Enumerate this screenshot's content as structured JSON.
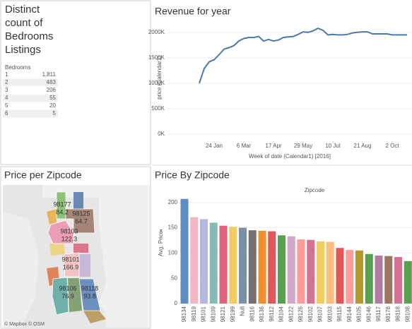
{
  "chart_data": [
    {
      "type": "table",
      "title": "Distinct count of Bedrooms Listings",
      "column": "Bedrooms",
      "categories": [
        "1",
        "2",
        "3",
        "4",
        "5",
        "6"
      ],
      "values": [
        1811,
        483,
        206,
        55,
        20,
        5
      ],
      "value_labels": [
        "1,811",
        "483",
        "206",
        "55",
        "20",
        "5"
      ],
      "stripe_color": "#f0f0f0"
    },
    {
      "type": "line",
      "title": "Revenue for year",
      "y_label": "price (Calendar1)",
      "x_label": "Week of date (Calendar1) [2016]",
      "color": "#4e79a7",
      "grid": true,
      "x": [
        "2016-01-03",
        "2016-01-10",
        "2016-01-17",
        "2016-01-24",
        "2016-01-31",
        "2016-02-07",
        "2016-02-14",
        "2016-02-21",
        "2016-02-28",
        "2016-03-06",
        "2016-03-13",
        "2016-03-20",
        "2016-03-27",
        "2016-04-03",
        "2016-04-10",
        "2016-04-17",
        "2016-04-24",
        "2016-05-01",
        "2016-05-08",
        "2016-05-15",
        "2016-05-22",
        "2016-05-29",
        "2016-06-05",
        "2016-06-12",
        "2016-06-19",
        "2016-06-26",
        "2016-07-03",
        "2016-07-10",
        "2016-07-17",
        "2016-07-24",
        "2016-07-31",
        "2016-08-07",
        "2016-08-14",
        "2016-08-21",
        "2016-08-28",
        "2016-09-04",
        "2016-09-11",
        "2016-09-18",
        "2016-09-25",
        "2016-10-02",
        "2016-10-09",
        "2016-10-16",
        "2016-10-23"
      ],
      "values": [
        1000000,
        1290000,
        1420000,
        1460000,
        1560000,
        1670000,
        1700000,
        1740000,
        1830000,
        1880000,
        1900000,
        1900000,
        1920000,
        1830000,
        1860000,
        1830000,
        1850000,
        1900000,
        1910000,
        1920000,
        1960000,
        2010000,
        2000000,
        2030000,
        2080000,
        2040000,
        1950000,
        1960000,
        1950000,
        1950000,
        1960000,
        1990000,
        2000000,
        2010000,
        2010000,
        1970000,
        1970000,
        1970000,
        1970000,
        1950000,
        1950000,
        1950000,
        1950000
      ],
      "xlim": [
        "2015-11-19",
        "2016-10-30"
      ],
      "xticks": [
        {
          "value": "2016-01-24",
          "label": "24 Jan"
        },
        {
          "value": "2016-03-06",
          "label": "6 Mar"
        },
        {
          "value": "2016-04-17",
          "label": "17 Apr"
        },
        {
          "value": "2016-05-29",
          "label": "29 May"
        },
        {
          "value": "2016-07-10",
          "label": "10 Jul"
        },
        {
          "value": "2016-08-21",
          "label": "21 Aug"
        },
        {
          "value": "2016-10-02",
          "label": "2 Oct"
        }
      ],
      "ylim": [
        -140000,
        2220000
      ],
      "yticks": [
        {
          "value": 0,
          "label": "0K"
        },
        {
          "value": 500000,
          "label": "500K"
        },
        {
          "value": 1000000,
          "label": "1000K"
        },
        {
          "value": 1500000,
          "label": "1500K"
        },
        {
          "value": 2000000,
          "label": "2000K"
        }
      ]
    },
    {
      "type": "map",
      "title": "Price per Zipcode",
      "attribution": "© Mapbox © OSM",
      "categories": [
        "98177",
        "98125",
        "98103",
        "98101",
        "98106",
        "98118"
      ],
      "values": [
        84.2,
        64.7,
        122.3,
        166.9,
        76.9,
        93.8
      ],
      "colors": [
        "#8cc27a",
        "#a58575",
        "#ea9fb4",
        "#f4c4c4",
        "#6fb0a8",
        "#6b8fbf"
      ]
    },
    {
      "type": "bar",
      "title": "Price By Zipcode",
      "subtitle": "Zipcode",
      "y_label": "Avg. Price",
      "categories": [
        "98134",
        "98119",
        "98101",
        "98109",
        "98121",
        "98199",
        "Null",
        "98116",
        "98136",
        "98112",
        "98104",
        "98122",
        "98126",
        "98102",
        "98107",
        "98103",
        "98115",
        "98144",
        "98105",
        "98146",
        "98117",
        "98178",
        "98118",
        "98108"
      ],
      "values": [
        207,
        171,
        167,
        160,
        154,
        152,
        150,
        145,
        144,
        143,
        135,
        133,
        127,
        126,
        123,
        122,
        110,
        106,
        105,
        98,
        95,
        94,
        92,
        84
      ],
      "colors": [
        "#5b8cc2",
        "#f5b4c8",
        "#b3b8e0",
        "#86bcb6",
        "#e0637d",
        "#f1ce63",
        "#7b8fa8",
        "#79706e",
        "#f28e2b",
        "#e15759",
        "#59a14f",
        "#d4a6c8",
        "#ff9d9a",
        "#d37295",
        "#f1ce63",
        "#ffbe7d",
        "#e15759",
        "#ff9d9a",
        "#b6992d",
        "#59a14f",
        "#b07aa1",
        "#9c755f",
        "#d37295",
        "#59a14f"
      ],
      "ylim": [
        0,
        215
      ],
      "yticks": [
        0,
        50,
        100,
        150,
        200
      ],
      "grid": true
    }
  ]
}
